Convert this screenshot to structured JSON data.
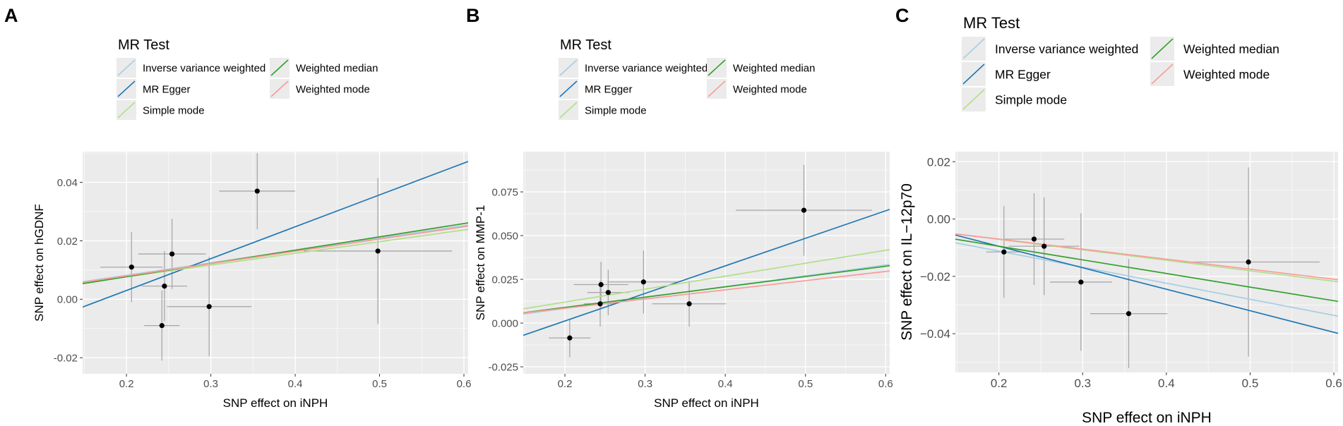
{
  "legend_title": "MR Test",
  "methods": [
    {
      "key": "ivw",
      "label": "Inverse variance weighted"
    },
    {
      "key": "egger",
      "label": "MR Egger"
    },
    {
      "key": "simple",
      "label": "Simple mode"
    },
    {
      "key": "wmedian",
      "label": "Weighted median"
    },
    {
      "key": "wmode",
      "label": "Weighted mode"
    }
  ],
  "colors": {
    "ivw": "#a6cee3",
    "egger": "#1f78b4",
    "simple": "#b2df8a",
    "wmedian": "#33a02c",
    "wmode": "#fb9a99",
    "panel_bg": "#ebebeb",
    "grid": "#ffffff",
    "point": "#000000",
    "errorbar": "#a8a8a8"
  },
  "chart_data": [
    {
      "panel_label": "A",
      "type": "scatter",
      "xlabel": "SNP effect on iNPH",
      "ylabel": "SNP effect on hGDNF",
      "xlim": [
        0.148,
        0.605
      ],
      "ylim": [
        -0.0255,
        0.0505
      ],
      "xticks": [
        0.2,
        0.3,
        0.4,
        0.5,
        0.6
      ],
      "xtick_labels": [
        "0.2",
        "0.3",
        "0.4",
        "0.5",
        "0.6"
      ],
      "yticks": [
        -0.02,
        0.0,
        0.02,
        0.04
      ],
      "ytick_labels": [
        "-0.02",
        "0.00",
        "0.02",
        "0.04"
      ],
      "points": [
        {
          "x": 0.206,
          "y": 0.011,
          "xerr": 0.037,
          "yerr": 0.012
        },
        {
          "x": 0.242,
          "y": -0.009,
          "xerr": 0.021,
          "yerr": 0.012
        },
        {
          "x": 0.245,
          "y": 0.0045,
          "xerr": 0.027,
          "yerr": 0.012
        },
        {
          "x": 0.254,
          "y": 0.0155,
          "xerr": 0.04,
          "yerr": 0.012
        },
        {
          "x": 0.298,
          "y": -0.0025,
          "xerr": 0.05,
          "yerr": 0.017
        },
        {
          "x": 0.355,
          "y": 0.037,
          "xerr": 0.045,
          "yerr": 0.013
        },
        {
          "x": 0.498,
          "y": 0.0165,
          "xerr": 0.088,
          "yerr": 0.025
        }
      ],
      "lines": [
        {
          "method": "ivw",
          "intercept": -0.0003,
          "slope": 0.0425
        },
        {
          "method": "egger",
          "intercept": -0.0188,
          "slope": 0.109
        },
        {
          "method": "simple",
          "intercept": -0.0003,
          "slope": 0.04
        },
        {
          "method": "wmedian",
          "intercept": -0.0014,
          "slope": 0.0455
        },
        {
          "method": "wmode",
          "intercept": -0.0004,
          "slope": 0.042
        }
      ]
    },
    {
      "panel_label": "B",
      "type": "scatter",
      "xlabel": "SNP effect on iNPH",
      "ylabel": "SNP effect on MMP-1",
      "xlim": [
        0.148,
        0.605
      ],
      "ylim": [
        -0.029,
        0.098
      ],
      "xticks": [
        0.2,
        0.3,
        0.4,
        0.5,
        0.6
      ],
      "xtick_labels": [
        "0.2",
        "0.3",
        "0.4",
        "0.5",
        "0.6"
      ],
      "yticks": [
        -0.025,
        0.0,
        0.025,
        0.05,
        0.075
      ],
      "ytick_labels": [
        "-0.025",
        "0.000",
        "0.025",
        "0.050",
        "0.075"
      ],
      "points": [
        {
          "x": 0.206,
          "y": -0.0085,
          "xerr": 0.026,
          "yerr": 0.011
        },
        {
          "x": 0.244,
          "y": 0.011,
          "xerr": 0.02,
          "yerr": 0.013
        },
        {
          "x": 0.245,
          "y": 0.022,
          "xerr": 0.034,
          "yerr": 0.013
        },
        {
          "x": 0.254,
          "y": 0.0175,
          "xerr": 0.026,
          "yerr": 0.013
        },
        {
          "x": 0.298,
          "y": 0.0235,
          "xerr": 0.045,
          "yerr": 0.018
        },
        {
          "x": 0.355,
          "y": 0.011,
          "xerr": 0.046,
          "yerr": 0.013
        },
        {
          "x": 0.498,
          "y": 0.0645,
          "xerr": 0.085,
          "yerr": 0.026
        }
      ],
      "lines": [
        {
          "method": "ivw",
          "intercept": -0.004,
          "slope": 0.062
        },
        {
          "method": "egger",
          "intercept": -0.0303,
          "slope": 0.1575
        },
        {
          "method": "simple",
          "intercept": -0.0028,
          "slope": 0.074
        },
        {
          "method": "wmedian",
          "intercept": -0.0028,
          "slope": 0.0588
        },
        {
          "method": "wmode",
          "intercept": -0.002,
          "slope": 0.0525
        }
      ]
    },
    {
      "panel_label": "C",
      "type": "scatter",
      "xlabel": "SNP effect on iNPH",
      "ylabel": "SNP effect on IL−12p70",
      "xlim": [
        0.148,
        0.605
      ],
      "ylim": [
        -0.0535,
        0.0235
      ],
      "xticks": [
        0.2,
        0.3,
        0.4,
        0.5,
        0.6
      ],
      "xtick_labels": [
        "0.2",
        "0.3",
        "0.4",
        "0.5",
        "0.6"
      ],
      "yticks": [
        -0.04,
        -0.02,
        0.0,
        0.02
      ],
      "ytick_labels": [
        "−0.04",
        "−0.02",
        "0.00",
        "0.02"
      ],
      "points": [
        {
          "x": 0.206,
          "y": -0.0115,
          "xerr": 0.021,
          "yerr": 0.016
        },
        {
          "x": 0.242,
          "y": -0.007,
          "xerr": 0.036,
          "yerr": 0.016
        },
        {
          "x": 0.254,
          "y": -0.0095,
          "xerr": 0.042,
          "yerr": 0.017
        },
        {
          "x": 0.298,
          "y": -0.022,
          "xerr": 0.037,
          "yerr": 0.024
        },
        {
          "x": 0.355,
          "y": -0.033,
          "xerr": 0.046,
          "yerr": 0.019
        },
        {
          "x": 0.498,
          "y": -0.015,
          "xerr": 0.085,
          "yerr": 0.033
        }
      ],
      "lines": [
        {
          "method": "ivw",
          "intercept": 0.0,
          "slope": -0.056
        },
        {
          "method": "egger",
          "intercept": 0.0055,
          "slope": -0.075
        },
        {
          "method": "simple",
          "intercept": 0.0002,
          "slope": -0.0365
        },
        {
          "method": "wmedian",
          "intercept": 0.0,
          "slope": -0.0475
        },
        {
          "method": "wmode",
          "intercept": 0.0,
          "slope": -0.035
        }
      ]
    }
  ]
}
